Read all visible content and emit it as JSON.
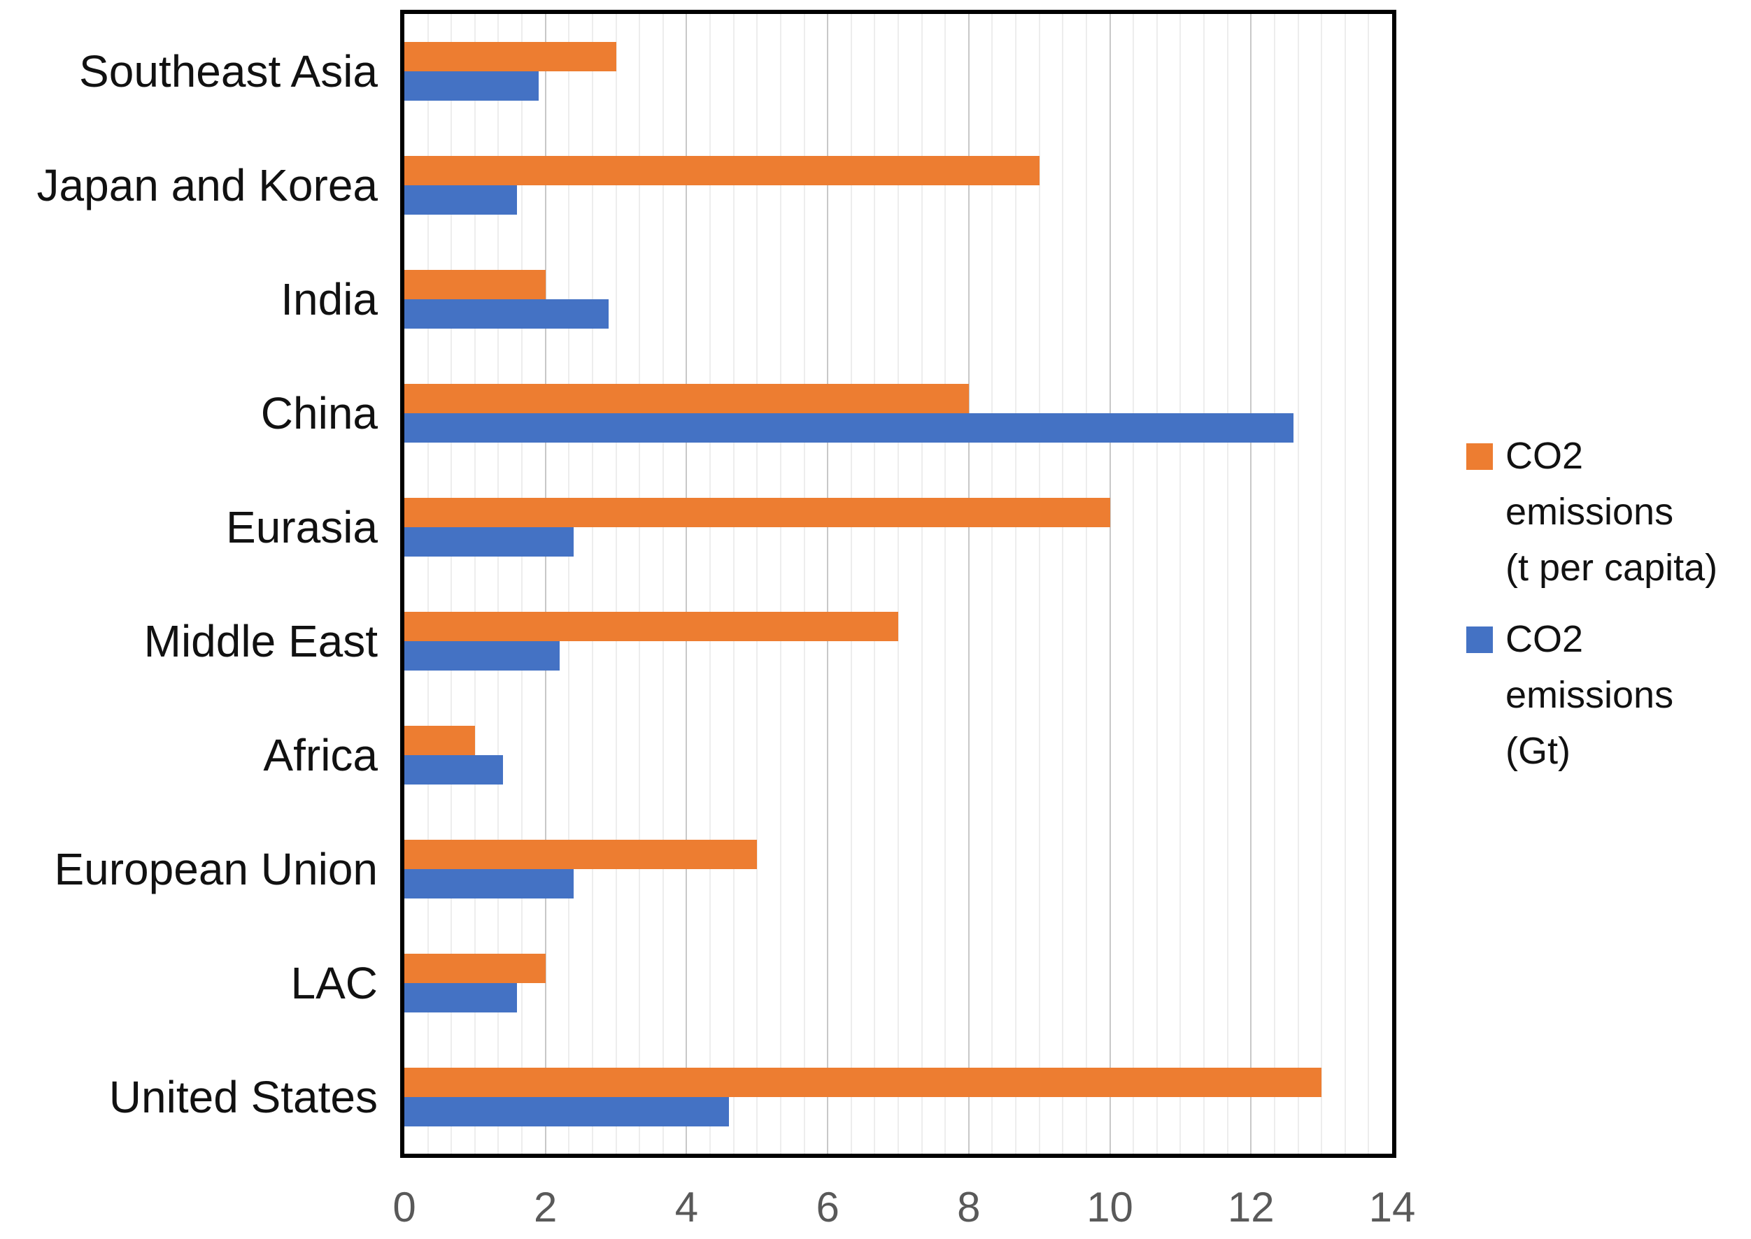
{
  "figure": {
    "background": "#ffffff",
    "plot_border_color": "#000000"
  },
  "chart_data": {
    "type": "bar",
    "orientation": "horizontal",
    "title": "",
    "xlabel": "",
    "ylabel": "",
    "categories": [
      "Southeast Asia",
      "Japan and Korea",
      "India",
      "China",
      "Eurasia",
      "Middle East",
      "Africa",
      "European Union",
      "LAC",
      "United States"
    ],
    "series": [
      {
        "name": "CO2 emissions (t per capita)",
        "color": "#ED7D31",
        "values": [
          3.0,
          9.0,
          2.0,
          8.0,
          10.0,
          7.0,
          1.0,
          5.0,
          2.0,
          13.0
        ]
      },
      {
        "name": "CO2 emissions (Gt)",
        "color": "#4472C4",
        "values": [
          1.9,
          1.6,
          2.9,
          12.6,
          2.4,
          2.2,
          1.4,
          2.4,
          1.6,
          4.6
        ]
      }
    ],
    "x_axis": {
      "min": 0,
      "max": 14,
      "tick_step": 2,
      "tick_labels": [
        "0",
        "2",
        "4",
        "6",
        "8",
        "10",
        "12",
        "14"
      ],
      "tick_color": "#595959"
    },
    "grid": {
      "show": true,
      "minor_steps_per_unit": 3,
      "major_step": 2,
      "minor_color": "#EDEDED",
      "major_color": "#C8C8C8"
    },
    "legend": {
      "position": "right",
      "entries": [
        {
          "color": "#ED7D31",
          "label": "CO2 emissions (t per capita)",
          "label_lines": [
            "CO2",
            "emissions",
            "(t per capita)"
          ]
        },
        {
          "color": "#4472C4",
          "label": "CO2 emissions (Gt)",
          "label_lines": [
            "CO2",
            "emissions",
            "(Gt)"
          ]
        }
      ]
    }
  }
}
